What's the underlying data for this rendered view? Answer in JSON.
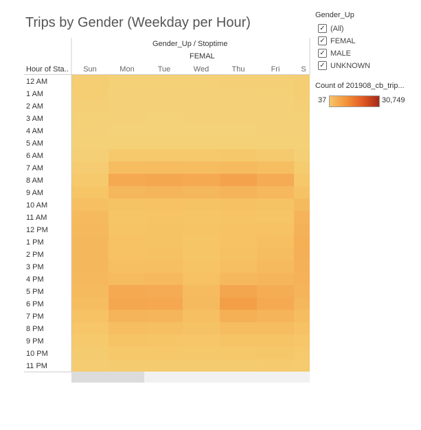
{
  "title": "Trips by Gender (Weekday per Hour)",
  "panel_title": "Gender_Up / Stoptime",
  "gender_header": "FEMAL",
  "row_header": "Hour of Sta..",
  "filter": {
    "title": "Gender_Up",
    "items": [
      {
        "label": "(All)",
        "checked": true
      },
      {
        "label": "FEMAL",
        "checked": true
      },
      {
        "label": "MALE",
        "checked": true
      },
      {
        "label": "UNKNOWN",
        "checked": true
      }
    ]
  },
  "color_legend": {
    "title": "Count of 201908_cb_trip...",
    "min_label": "37",
    "max_label": "30,749",
    "ramp_colors": [
      "#f8c46a",
      "#f3933a",
      "#e25a24",
      "#a42a18"
    ]
  },
  "chart_data": {
    "type": "heatmap",
    "title": "Trips by Gender (Weekday per Hour)",
    "column_header": "Gender_Up / Stoptime",
    "gender": "FEMAL",
    "x": [
      "Sun",
      "Mon",
      "Tue",
      "Wed",
      "Thu",
      "Fri",
      "S"
    ],
    "y": [
      "12 AM",
      "1 AM",
      "2 AM",
      "3 AM",
      "4 AM",
      "5 AM",
      "6 AM",
      "7 AM",
      "8 AM",
      "9 AM",
      "10 AM",
      "11 AM",
      "12 PM",
      "1 PM",
      "2 PM",
      "3 PM",
      "4 PM",
      "5 PM",
      "6 PM",
      "7 PM",
      "8 PM",
      "9 PM",
      "10 PM",
      "11 PM"
    ],
    "ylabel": "Hour of Sta..",
    "color_min": 37,
    "color_max": 30749,
    "values": [
      [
        1500,
        700,
        600,
        700,
        800,
        900,
        1400
      ],
      [
        1200,
        400,
        350,
        400,
        450,
        500,
        1100
      ],
      [
        900,
        250,
        220,
        250,
        280,
        300,
        800
      ],
      [
        700,
        180,
        160,
        180,
        200,
        220,
        600
      ],
      [
        450,
        150,
        140,
        150,
        170,
        180,
        400
      ],
      [
        600,
        600,
        600,
        600,
        620,
        600,
        500
      ],
      [
        900,
        2600,
        2700,
        2600,
        2800,
        2500,
        900
      ],
      [
        1700,
        5200,
        5400,
        5200,
        5600,
        5000,
        1900
      ],
      [
        2600,
        8800,
        9200,
        8800,
        9700,
        8400,
        2900
      ],
      [
        3800,
        6300,
        6600,
        6300,
        6900,
        6100,
        4100
      ],
      [
        4800,
        4100,
        4300,
        4100,
        4400,
        4100,
        5800
      ],
      [
        5700,
        3700,
        3900,
        3700,
        4000,
        3800,
        6900
      ],
      [
        6100,
        4000,
        4100,
        3900,
        4200,
        4300,
        7400
      ],
      [
        6300,
        4200,
        4100,
        3700,
        4300,
        4800,
        7600
      ],
      [
        6300,
        4300,
        4400,
        3800,
        4500,
        5100,
        7500
      ],
      [
        6200,
        4700,
        4800,
        4000,
        4900,
        5700,
        7400
      ],
      [
        6000,
        5600,
        5900,
        4500,
        6100,
        6600,
        7100
      ],
      [
        5700,
        8600,
        8500,
        5600,
        9300,
        8100,
        6800
      ],
      [
        5200,
        9200,
        9000,
        5700,
        10400,
        8700,
        6200
      ],
      [
        4300,
        6900,
        6700,
        4800,
        7600,
        6800,
        5100
      ],
      [
        3400,
        5000,
        4900,
        4100,
        5300,
        5100,
        4200
      ],
      [
        2600,
        3900,
        3800,
        3400,
        4000,
        4000,
        3300
      ],
      [
        2100,
        3000,
        2900,
        2800,
        3000,
        3100,
        2600
      ],
      [
        1700,
        2000,
        2000,
        2000,
        2100,
        2200,
        2100
      ]
    ]
  }
}
